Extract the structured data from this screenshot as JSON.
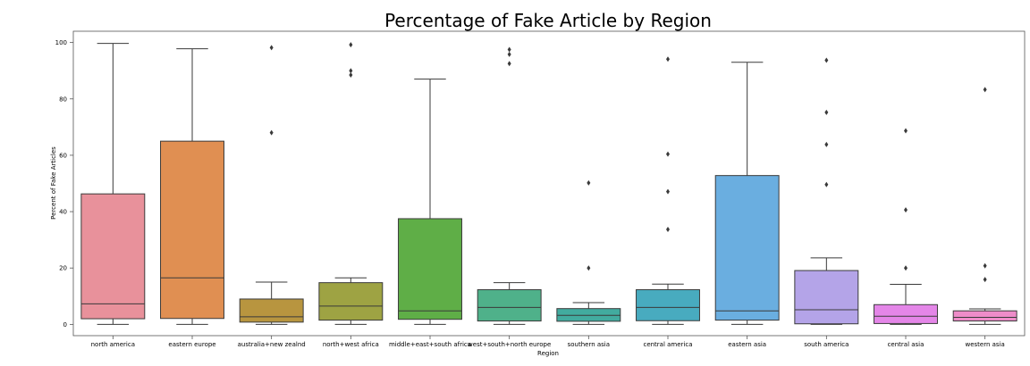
{
  "chart_data": {
    "type": "box",
    "title": "Percentage of Fake Article by Region",
    "xlabel": "Region",
    "ylabel": "Percent of Fake Articles",
    "ylim": [
      -4,
      104
    ],
    "yticks": [
      0,
      20,
      40,
      60,
      80,
      100
    ],
    "grid": false,
    "categories": [
      "north america",
      "eastern europe",
      "australia+new zealnd",
      "north+west africa",
      "middle+east+south africa",
      "west+south+north europe",
      "southern asia",
      "central america",
      "eastern asia",
      "south america",
      "central asia",
      "western asia"
    ],
    "boxes": [
      {
        "min": 0,
        "q1": 2,
        "median": 7.3,
        "q3": 46.3,
        "max": 99.7,
        "outliers": [],
        "color": "#e8919b"
      },
      {
        "min": 0,
        "q1": 2.1,
        "median": 16.5,
        "q3": 65,
        "max": 97.8,
        "outliers": [],
        "color": "#e08f52"
      },
      {
        "min": 0,
        "q1": 0.8,
        "median": 2.7,
        "q3": 9,
        "max": 15,
        "outliers": [
          68,
          98.2
        ],
        "color": "#b8953f"
      },
      {
        "min": 0,
        "q1": 1.5,
        "median": 6.5,
        "q3": 14.8,
        "max": 16.5,
        "outliers": [
          88.5,
          90,
          99.2
        ],
        "color": "#9ea343"
      },
      {
        "min": 0,
        "q1": 1.8,
        "median": 4.8,
        "q3": 37.5,
        "max": 87,
        "outliers": [],
        "color": "#5fae47"
      },
      {
        "min": 0,
        "q1": 1.2,
        "median": 6,
        "q3": 12.3,
        "max": 14.8,
        "outliers": [
          92.5,
          95.8,
          97.5
        ],
        "color": "#4fb18a"
      },
      {
        "min": 0,
        "q1": 1.1,
        "median": 3.2,
        "q3": 5.6,
        "max": 7.7,
        "outliers": [
          20,
          50.2
        ],
        "color": "#42ab9f"
      },
      {
        "min": 0,
        "q1": 1.3,
        "median": 6,
        "q3": 12.3,
        "max": 14.3,
        "outliers": [
          33.7,
          47.1,
          60.4,
          94.1
        ],
        "color": "#48abbf"
      },
      {
        "min": 0,
        "q1": 1.5,
        "median": 4.8,
        "q3": 52.8,
        "max": 93,
        "outliers": [],
        "color": "#6aaee0"
      },
      {
        "min": 0,
        "q1": 0.2,
        "median": 5.2,
        "q3": 19.1,
        "max": 23.6,
        "outliers": [
          49.6,
          63.8,
          75.2,
          93.7
        ],
        "color": "#b4a4e8"
      },
      {
        "min": 0,
        "q1": 0.3,
        "median": 2.9,
        "q3": 7,
        "max": 14.2,
        "outliers": [
          20,
          40.6,
          68.7
        ],
        "color": "#e486e8"
      },
      {
        "min": 0,
        "q1": 1.2,
        "median": 2.5,
        "q3": 4.8,
        "max": 5.5,
        "outliers": [
          15.9,
          20.8,
          83.3
        ],
        "color": "#ee8cc9"
      }
    ]
  }
}
